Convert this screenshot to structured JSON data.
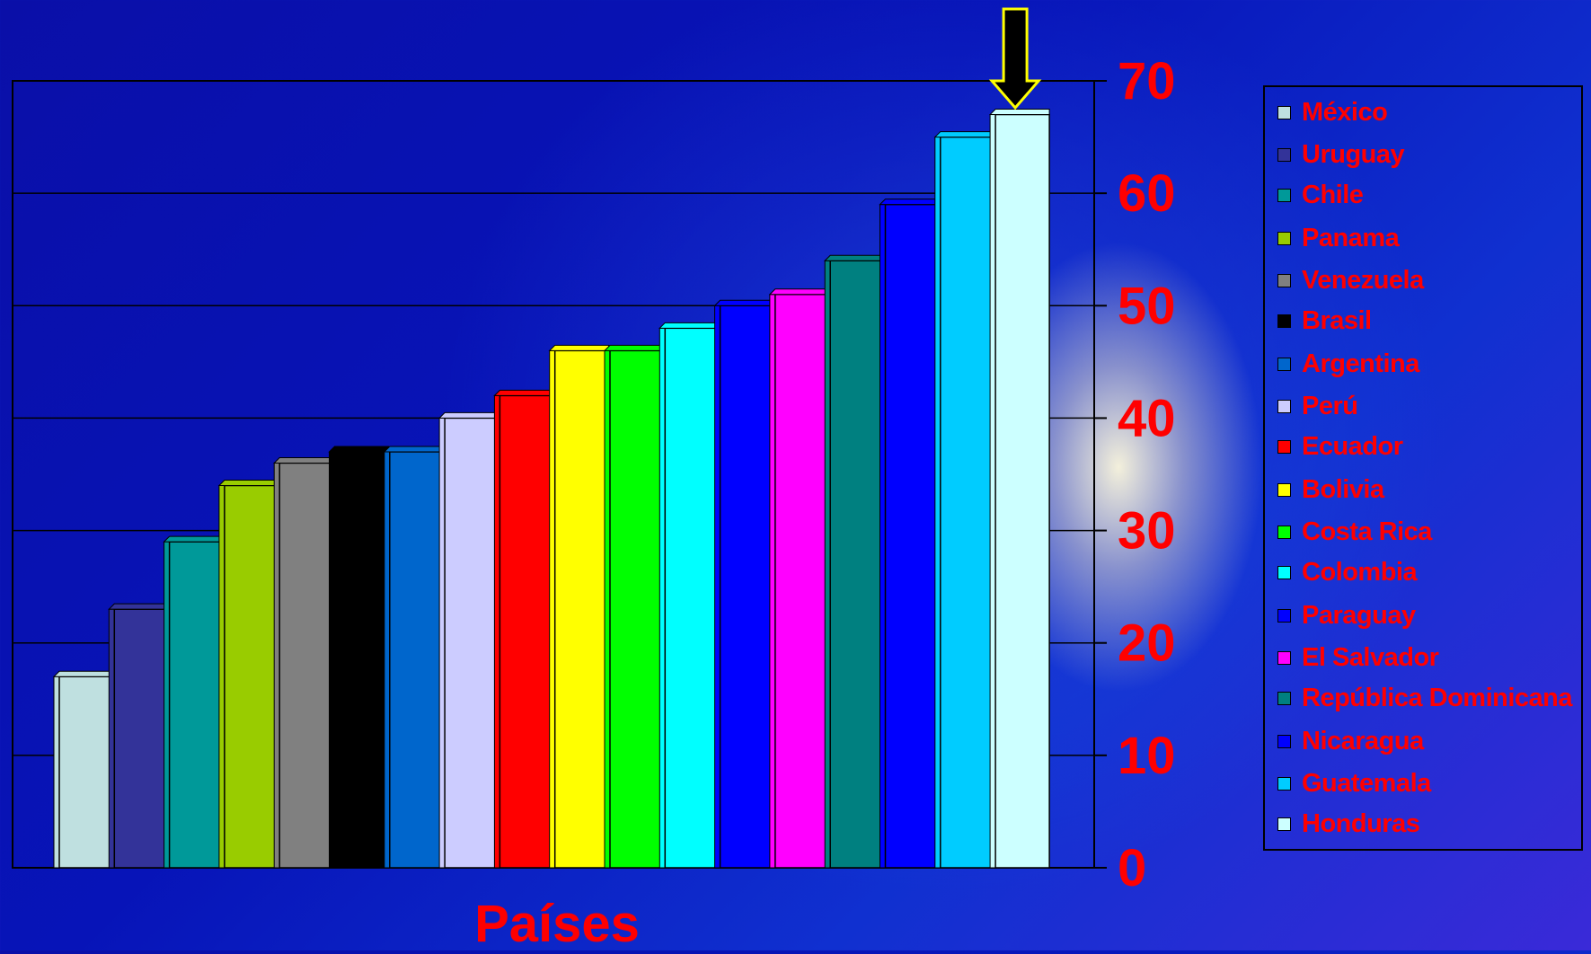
{
  "colors": {
    "text_accent": "#ff0000",
    "grid": "#000000",
    "arrow_fill": "#000000",
    "arrow_outline": "#ffff00"
  },
  "chart_data": {
    "type": "bar",
    "title": "",
    "xlabel": "Países",
    "ylabel": "",
    "ylim": [
      0,
      70
    ],
    "yticks": [
      0,
      10,
      20,
      30,
      40,
      50,
      60,
      70
    ],
    "ytick_labels": [
      "0",
      "10",
      "20",
      "30",
      "40",
      "50",
      "60",
      "70"
    ],
    "y_axis_side": "right",
    "grid": true,
    "legend_position": "right",
    "series": [
      {
        "name": "México",
        "value": 17,
        "color": "#bfe0e0"
      },
      {
        "name": "Uruguay",
        "value": 23,
        "color": "#333399"
      },
      {
        "name": "Chile",
        "value": 29,
        "color": "#009999"
      },
      {
        "name": "Panama",
        "value": 34,
        "color": "#99cc00"
      },
      {
        "name": "Venezuela",
        "value": 36,
        "color": "#808080"
      },
      {
        "name": "Brasil",
        "value": 37,
        "color": "#000000"
      },
      {
        "name": "Argentina",
        "value": 37,
        "color": "#0066cc"
      },
      {
        "name": "Perú",
        "value": 40,
        "color": "#ccccff"
      },
      {
        "name": "Ecuador",
        "value": 42,
        "color": "#ff0000"
      },
      {
        "name": "Bolivia",
        "value": 46,
        "color": "#ffff00"
      },
      {
        "name": "Costa Rica",
        "value": 46,
        "color": "#00ff00"
      },
      {
        "name": "Colombia",
        "value": 48,
        "color": "#00ffff"
      },
      {
        "name": "Paraguay",
        "value": 50,
        "color": "#0000ff"
      },
      {
        "name": "El Salvador",
        "value": 51,
        "color": "#ff00ff"
      },
      {
        "name": "República Dominicana",
        "value": 54,
        "color": "#008080"
      },
      {
        "name": "Nicaragua",
        "value": 59,
        "color": "#0000ff"
      },
      {
        "name": "Guatemala",
        "value": 65,
        "color": "#00ccff"
      },
      {
        "name": "Honduras",
        "value": 67,
        "color": "#ccffff"
      }
    ],
    "highlight": {
      "series": "Honduras",
      "marker": "arrow-down"
    }
  }
}
